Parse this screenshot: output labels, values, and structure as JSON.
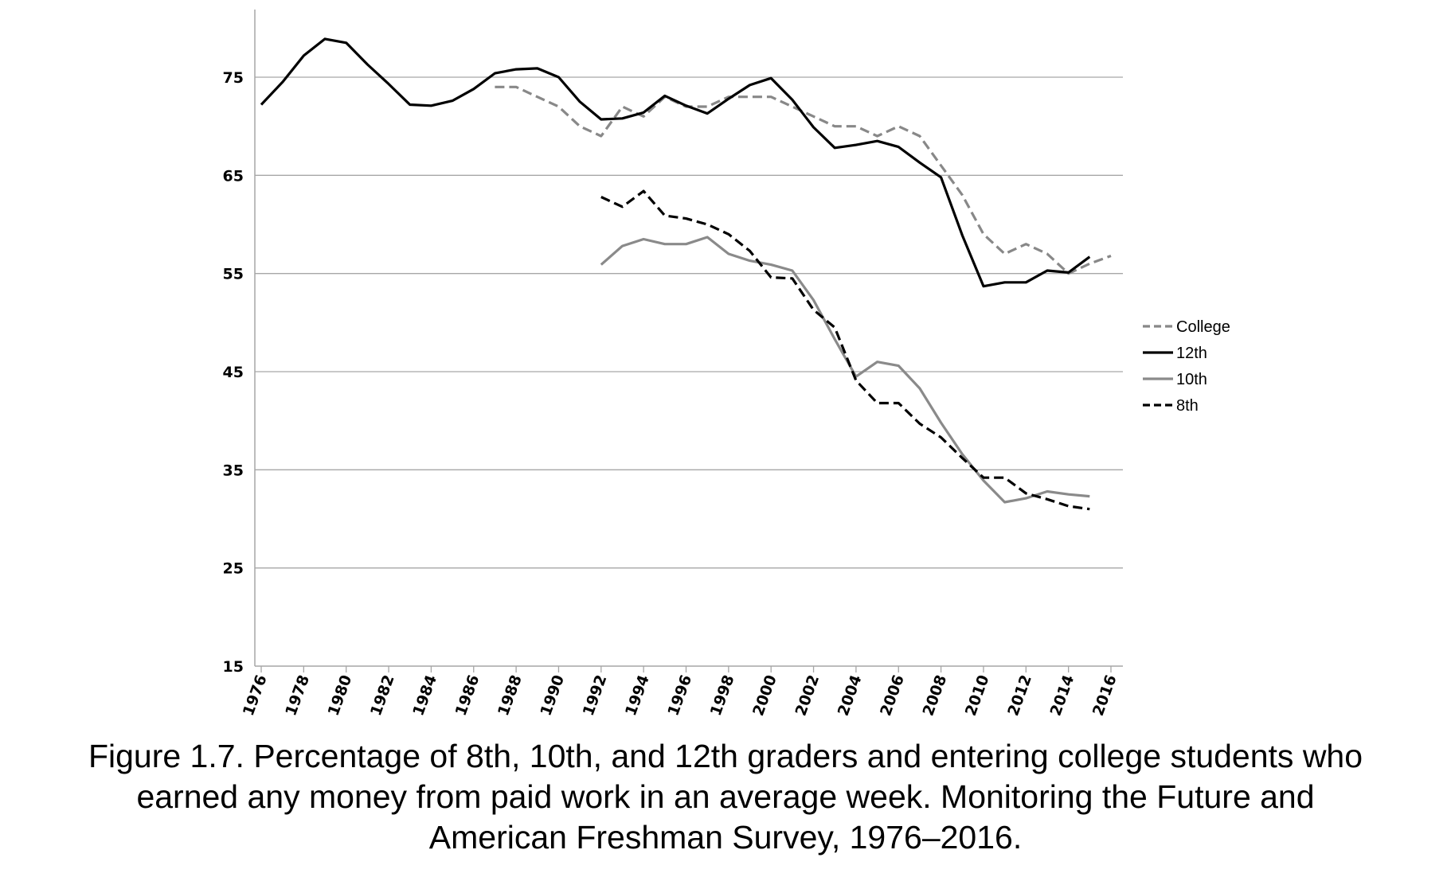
{
  "chart_data": {
    "type": "line",
    "title": "",
    "xlabel": "",
    "ylabel": "",
    "xlim": [
      1976,
      2016
    ],
    "ylim": [
      15,
      80
    ],
    "y_ticks": [
      15,
      25,
      35,
      45,
      55,
      65,
      75
    ],
    "x_ticks": [
      1976,
      1978,
      1980,
      1982,
      1984,
      1986,
      1988,
      1990,
      1992,
      1994,
      1996,
      1998,
      2000,
      2002,
      2004,
      2006,
      2008,
      2010,
      2012,
      2014,
      2016
    ],
    "grid": "horizontal",
    "legend_position": "right",
    "series": [
      {
        "name": "College",
        "color": "#888888",
        "style": "dashed",
        "x": [
          1987,
          1988,
          1989,
          1990,
          1991,
          1992,
          1993,
          1994,
          1995,
          1996,
          1997,
          1998,
          1999,
          2000,
          2001,
          2002,
          2003,
          2004,
          2005,
          2006,
          2007,
          2008,
          2009,
          2010,
          2011,
          2012,
          2013,
          2014,
          2015,
          2016
        ],
        "values": [
          74,
          74,
          73,
          72,
          70,
          69,
          72,
          71,
          73,
          72,
          72,
          73,
          73,
          73,
          72,
          71,
          70,
          70,
          69,
          70,
          69,
          66,
          63,
          59,
          57,
          58,
          57,
          55,
          56,
          56.8
        ]
      },
      {
        "name": "12th",
        "color": "#000000",
        "style": "solid",
        "x": [
          1976,
          1977,
          1978,
          1979,
          1980,
          1981,
          1982,
          1983,
          1984,
          1985,
          1986,
          1987,
          1988,
          1989,
          1990,
          1991,
          1992,
          1993,
          1994,
          1995,
          1996,
          1997,
          1998,
          1999,
          2000,
          2001,
          2002,
          2003,
          2004,
          2005,
          2006,
          2007,
          2008,
          2009,
          2010,
          2011,
          2012,
          2013,
          2014,
          2015
        ],
        "values": [
          72.2,
          74.5,
          77.2,
          78.9,
          78.5,
          76.3,
          74.3,
          72.2,
          72.1,
          72.6,
          73.8,
          75.4,
          75.8,
          75.9,
          75,
          72.5,
          70.7,
          70.8,
          71.4,
          73.1,
          72.1,
          71.3,
          72.8,
          74.2,
          74.9,
          72.7,
          69.9,
          67.8,
          68.1,
          68.5,
          67.9,
          66.3,
          64.8,
          58.9,
          53.7,
          54.1,
          54.1,
          55.3,
          55.1,
          56.7
        ]
      },
      {
        "name": "10th",
        "color": "#8a8a8a",
        "style": "solid",
        "x": [
          1992,
          1993,
          1994,
          1995,
          1996,
          1997,
          1998,
          1999,
          2000,
          2001,
          2002,
          2003,
          2004,
          2005,
          2006,
          2007,
          2008,
          2009,
          2010,
          2011,
          2012,
          2013,
          2014,
          2015
        ],
        "values": [
          55.9,
          57.8,
          58.5,
          58,
          58,
          58.7,
          57,
          56.3,
          55.9,
          55.3,
          52.3,
          48.3,
          44.5,
          46,
          45.6,
          43.3,
          39.8,
          36.6,
          33.9,
          31.7,
          32.1,
          32.8,
          32.5,
          32.3
        ]
      },
      {
        "name": "8th",
        "color": "#000000",
        "style": "dashed",
        "x": [
          1992,
          1993,
          1994,
          1995,
          1996,
          1997,
          1998,
          1999,
          2000,
          2001,
          2002,
          2003,
          2004,
          2005,
          2006,
          2007,
          2008,
          2009,
          2010,
          2011,
          2012,
          2013,
          2014,
          2015
        ],
        "values": [
          62.8,
          61.8,
          63.4,
          60.9,
          60.6,
          60,
          59,
          57.3,
          54.6,
          54.5,
          51.3,
          49.5,
          44.1,
          41.8,
          41.8,
          39.7,
          38.3,
          36.2,
          34.2,
          34.2,
          32.6,
          32,
          31.3,
          31
        ]
      }
    ]
  },
  "caption": {
    "line1": "Figure 1.7. Percentage of 8th, 10th, and 12th graders and entering college students who",
    "line2": "earned any money from paid work in an average week. Monitoring the Future and",
    "line3": "American Freshman Survey, 1976–2016."
  }
}
